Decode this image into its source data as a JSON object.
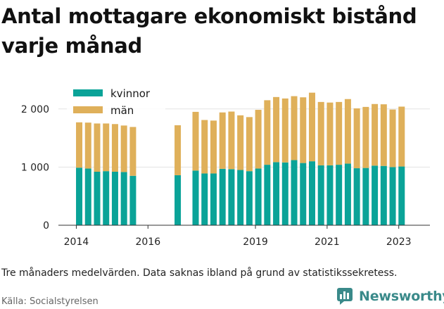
{
  "title": "Antal mottagare ekonomiskt bistånd varje månad",
  "note": "Tre månaders medelvärden. Data saknas ibland på grund av statistikssekretess.",
  "source": "Källa: Socialstyrelsen",
  "brand": {
    "name": "Newsworthy",
    "icon": "bar-chart-logo-icon",
    "color": "#3a8a8a"
  },
  "chart_data": {
    "type": "bar",
    "stacked": true,
    "xlabel": "",
    "ylabel": "",
    "ylim": [
      0,
      2300
    ],
    "yticks": [
      0,
      1000,
      2000
    ],
    "ytick_labels": [
      "0",
      "1 000",
      "2 000"
    ],
    "xticks": [
      2014,
      2016,
      2019,
      2021,
      2023
    ],
    "xlim": [
      2013.5,
      2023.87
    ],
    "legend_position": "top-left",
    "grid": true,
    "series": [
      {
        "name": "kvinnor",
        "color": "#0aa398",
        "values": [
          990,
          975,
          920,
          930,
          920,
          915,
          850,
          null,
          860,
          null,
          940,
          890,
          890,
          970,
          965,
          950,
          930,
          975,
          1040,
          1085,
          1080,
          1120,
          1070,
          1100,
          1030,
          1030,
          1040,
          1060,
          980,
          985,
          1025,
          1020,
          1000,
          1010
        ]
      },
      {
        "name": "män",
        "color": "#dfb05a",
        "values": [
          780,
          790,
          830,
          820,
          820,
          800,
          840,
          null,
          860,
          null,
          1010,
          920,
          910,
          970,
          990,
          940,
          930,
          1010,
          1110,
          1120,
          1100,
          1100,
          1130,
          1180,
          1090,
          1080,
          1080,
          1110,
          1030,
          1050,
          1060,
          1060,
          990,
          1030
        ]
      }
    ],
    "x": [
      2014.08,
      2014.33,
      2014.58,
      2014.83,
      2015.08,
      2015.33,
      2015.58,
      2016.58,
      2016.83,
      2017.08,
      2017.33,
      2017.58,
      2017.83,
      2018.08,
      2018.33,
      2018.58,
      2018.83,
      2019.08,
      2019.33,
      2019.58,
      2019.83,
      2020.08,
      2020.33,
      2020.58,
      2020.83,
      2021.08,
      2021.33,
      2021.58,
      2021.83,
      2022.08,
      2022.33,
      2022.58,
      2022.83,
      2023.08
    ]
  }
}
